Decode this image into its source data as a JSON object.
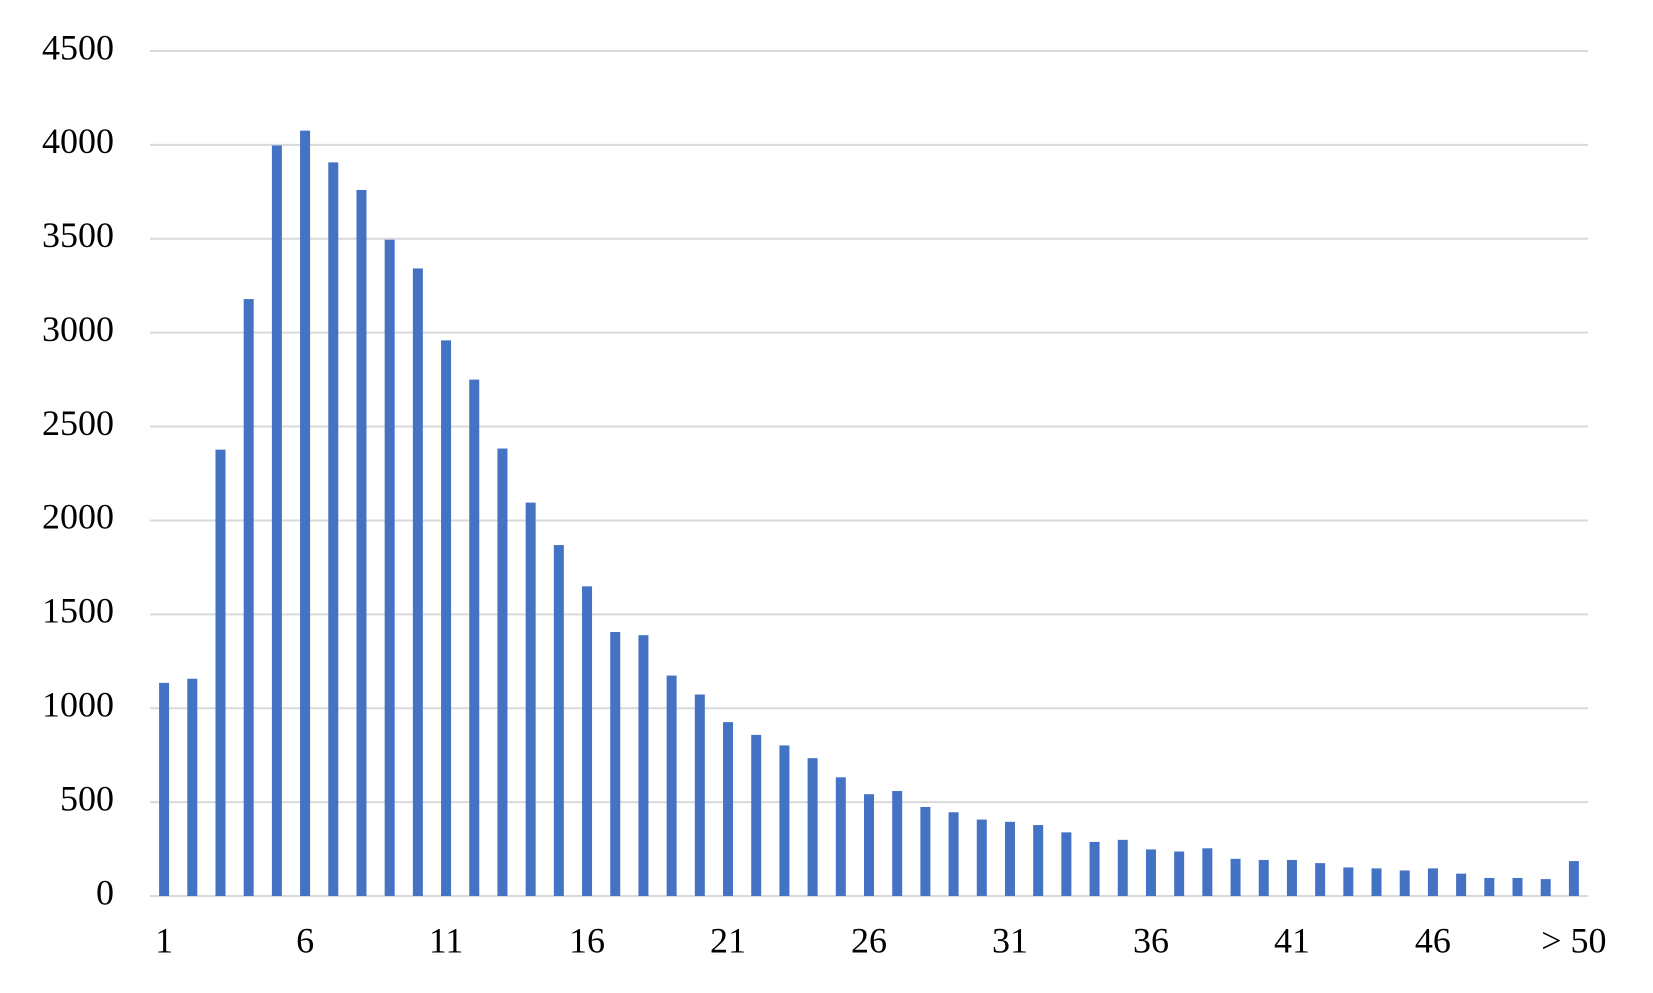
{
  "chart_data": {
    "type": "bar",
    "categories": [
      "1",
      null,
      null,
      null,
      null,
      "6",
      null,
      null,
      null,
      null,
      "11",
      null,
      null,
      null,
      null,
      "16",
      null,
      null,
      null,
      null,
      "21",
      null,
      null,
      null,
      null,
      "26",
      null,
      null,
      null,
      null,
      "31",
      null,
      null,
      null,
      null,
      "36",
      null,
      null,
      null,
      null,
      "41",
      null,
      null,
      null,
      null,
      "46",
      null,
      null,
      null,
      null,
      "> 50"
    ],
    "values": [
      1135,
      1157,
      2377,
      3179,
      3997,
      4076,
      3907,
      3760,
      3495,
      3342,
      2959,
      2750,
      2383,
      2095,
      1869,
      1649,
      1406,
      1389,
      1174,
      1073,
      926,
      858,
      802,
      734,
      632,
      542,
      559,
      474,
      446,
      407,
      395,
      378,
      339,
      288,
      299,
      248,
      237,
      254,
      198,
      192,
      192,
      175,
      152,
      147,
      136,
      147,
      119,
      96,
      96,
      90,
      186
    ],
    "color": "#4472c4",
    "ylim": [
      0,
      4500
    ],
    "yticks": [
      0,
      500,
      1000,
      1500,
      2000,
      2500,
      3000,
      3500,
      4000,
      4500
    ],
    "grid": true
  }
}
